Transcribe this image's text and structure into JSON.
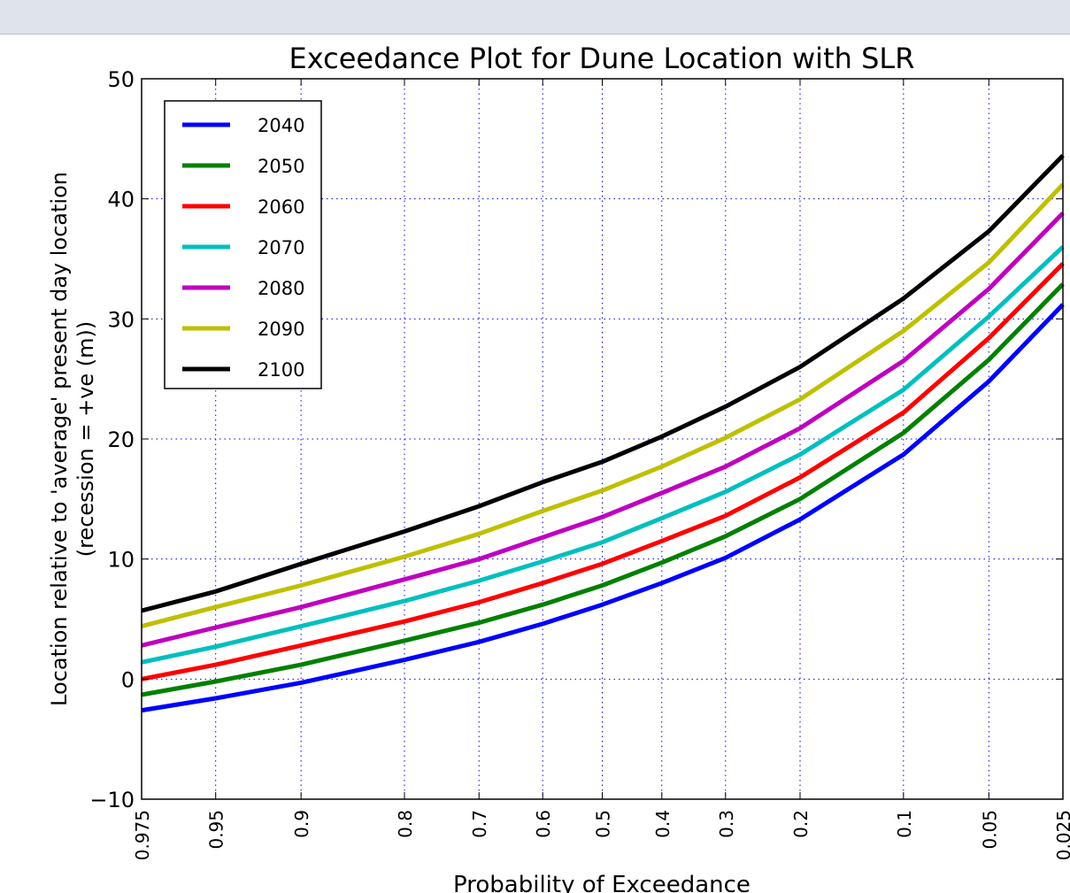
{
  "chart_data": {
    "type": "line",
    "title": "Exceedance Plot for Dune Location with SLR",
    "xlabel": "Probability of Exceedance",
    "ylabel_line1": "Location relative to 'average' present day location",
    "ylabel_line2": "(recession = +ve (m))",
    "x_scale": "probability (normal quantile)",
    "x_ticks": [
      "0.975",
      "0.95",
      "0.9",
      "0.8",
      "0.7",
      "0.6",
      "0.5",
      "0.4",
      "0.3",
      "0.2",
      "0.1",
      "0.05",
      "0.025"
    ],
    "x": [
      0.975,
      0.95,
      0.9,
      0.8,
      0.7,
      0.6,
      0.5,
      0.4,
      0.3,
      0.2,
      0.1,
      0.05,
      0.025
    ],
    "y_ticks": [
      "−10",
      "0",
      "10",
      "20",
      "30",
      "40",
      "50"
    ],
    "ylim": [
      -10,
      50
    ],
    "grid": true,
    "legend_position": "top-left",
    "series": [
      {
        "name": "2040",
        "color": "#0000ff",
        "values": [
          -2.6,
          -1.6,
          -0.3,
          1.6,
          3.1,
          4.6,
          6.2,
          8.0,
          10.1,
          13.3,
          18.7,
          24.8,
          31.2
        ]
      },
      {
        "name": "2050",
        "color": "#008000",
        "values": [
          -1.3,
          -0.2,
          1.2,
          3.2,
          4.7,
          6.2,
          7.8,
          9.7,
          11.9,
          15.0,
          20.5,
          26.6,
          32.9
        ]
      },
      {
        "name": "2060",
        "color": "#ff0000",
        "values": [
          0.0,
          1.2,
          2.8,
          4.8,
          6.4,
          8.0,
          9.6,
          11.5,
          13.6,
          16.8,
          22.2,
          28.4,
          34.6
        ]
      },
      {
        "name": "2070",
        "color": "#00bfbf",
        "values": [
          1.4,
          2.7,
          4.4,
          6.5,
          8.2,
          9.8,
          11.4,
          13.4,
          15.6,
          18.7,
          24.1,
          30.2,
          36.0
        ]
      },
      {
        "name": "2080",
        "color": "#bf00bf",
        "values": [
          2.8,
          4.3,
          6.0,
          8.3,
          10.0,
          11.8,
          13.5,
          15.5,
          17.7,
          20.9,
          26.5,
          32.5,
          38.8
        ]
      },
      {
        "name": "2090",
        "color": "#bfbf00",
        "values": [
          4.4,
          6.0,
          7.8,
          10.2,
          12.1,
          14.0,
          15.7,
          17.7,
          20.1,
          23.3,
          29.0,
          34.7,
          41.2
        ]
      },
      {
        "name": "2100",
        "color": "#000000",
        "values": [
          5.7,
          7.3,
          9.6,
          12.3,
          14.4,
          16.4,
          18.1,
          20.2,
          22.7,
          26.0,
          31.7,
          37.3,
          43.6
        ]
      }
    ]
  }
}
